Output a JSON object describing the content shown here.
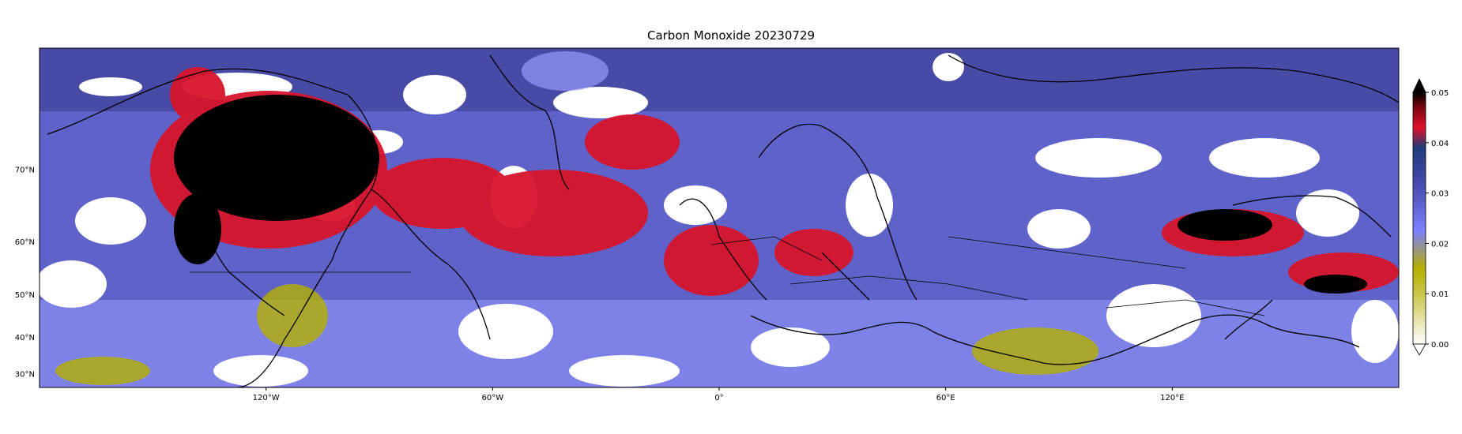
{
  "title": "Carbon Monoxide 20230729",
  "map": {
    "lon_ticks": [
      {
        "lon": -120,
        "label": "120°W"
      },
      {
        "lon": -60,
        "label": "60°W"
      },
      {
        "lon": 0,
        "label": "0°"
      },
      {
        "lon": 60,
        "label": "60°E"
      },
      {
        "lon": 120,
        "label": "120°E"
      }
    ],
    "lat_ticks": [
      {
        "lat": 70,
        "label": "70°N"
      },
      {
        "lat": 60,
        "label": "60°N"
      },
      {
        "lat": 50,
        "label": "50°N"
      },
      {
        "lat": 40,
        "label": "40°N"
      },
      {
        "lat": 30,
        "label": "30°N"
      }
    ],
    "lon_range": [
      -180,
      180
    ],
    "lat_range": [
      26,
      80
    ]
  },
  "colorbar": {
    "ticks": [
      "0.00",
      "0.01",
      "0.02",
      "0.03",
      "0.04",
      "0.05"
    ],
    "min": 0.0,
    "max": 0.05,
    "extend": "max",
    "colors": [
      "#ffffff",
      "#b5b000",
      "#7b80ff",
      "#3b3f9a",
      "#e0102a",
      "#000000"
    ]
  }
}
